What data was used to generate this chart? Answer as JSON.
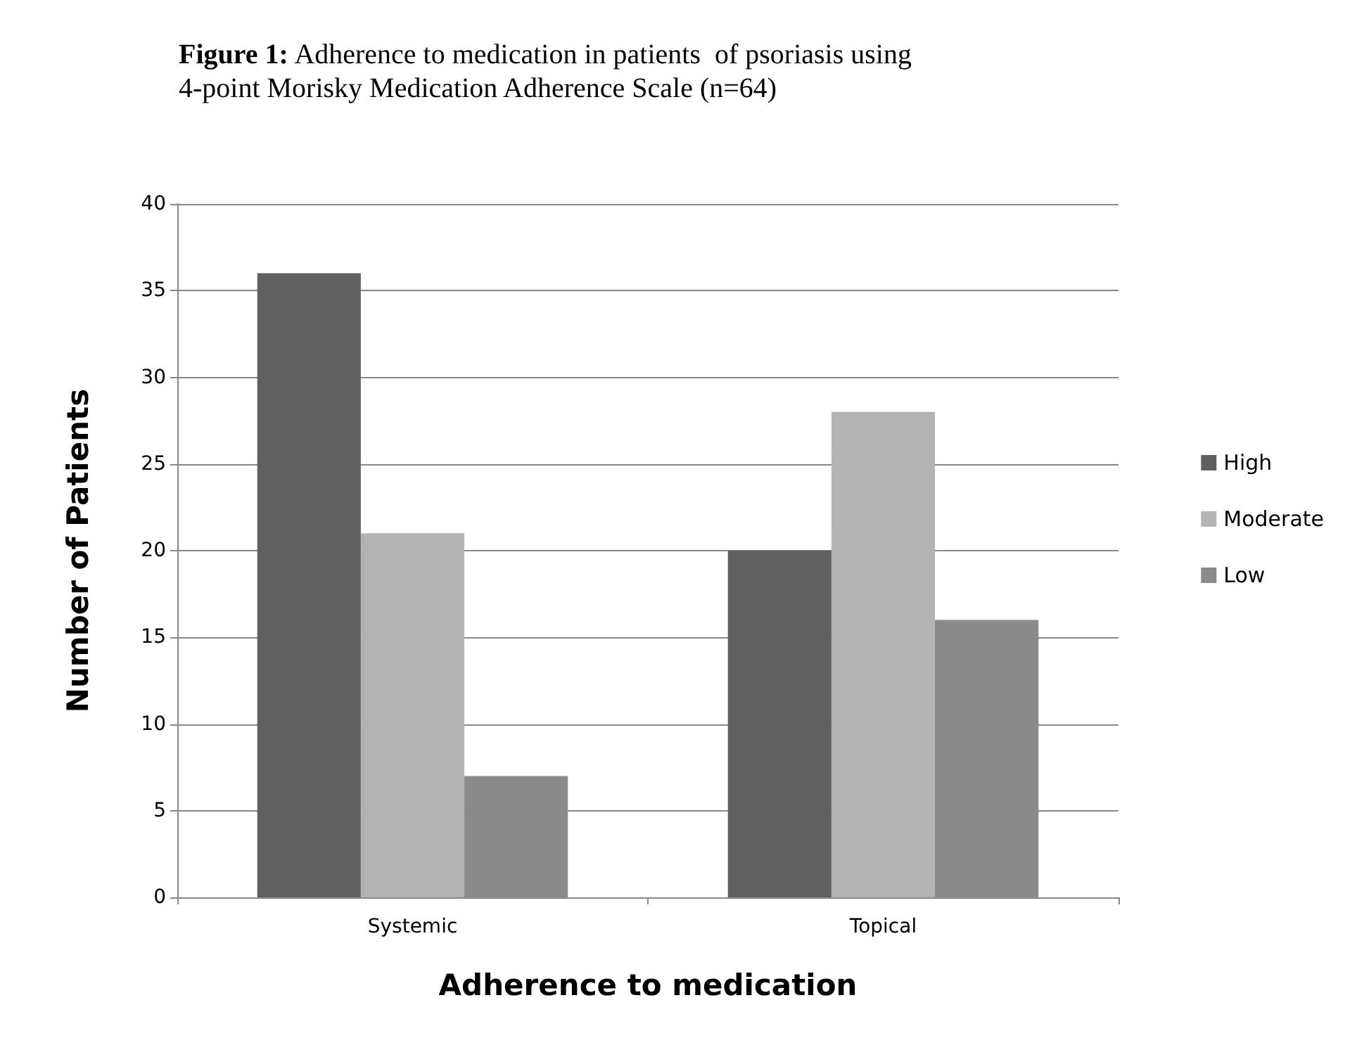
{
  "chart_data": {
    "type": "bar",
    "title": "Figure 1: Adherence to medication in patients  of psoriasis using 4-point Morisky Medication Adherence Scale (n=64)",
    "xlabel": "Adherence to medication",
    "ylabel": "Number of Patients",
    "categories": [
      "Systemic",
      "Topical"
    ],
    "series": [
      {
        "name": "High",
        "color": "#606060",
        "values": [
          36,
          20
        ]
      },
      {
        "name": "Moderate",
        "color": "#b3b3b3",
        "values": [
          21,
          28
        ]
      },
      {
        "name": "Low",
        "color": "#8a8a8a",
        "values": [
          7,
          16
        ]
      }
    ],
    "ylim": [
      0,
      40
    ],
    "yticks": [
      0,
      5,
      10,
      15,
      20,
      25,
      30,
      35,
      40
    ],
    "grid": "y",
    "legend": "right"
  }
}
